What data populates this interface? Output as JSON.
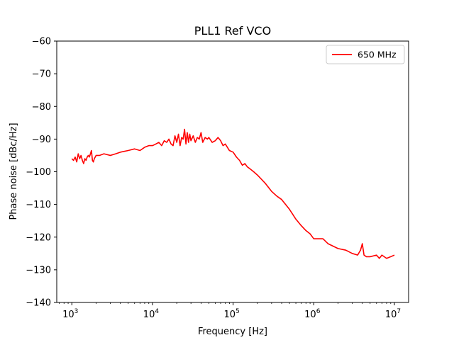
{
  "chart_data": {
    "type": "line",
    "title": "PLL1 Ref VCO",
    "xlabel": "Frequency [Hz]",
    "ylabel": "Phase noise [dBc/Hz]",
    "xscale": "log",
    "xlim": [
      650,
      15000000
    ],
    "ylim": [
      -140,
      -60
    ],
    "grid": false,
    "legend_position": "top-right",
    "x_ticks": [
      {
        "value": 1000,
        "base": "10",
        "exp": "3"
      },
      {
        "value": 10000,
        "base": "10",
        "exp": "4"
      },
      {
        "value": 100000,
        "base": "10",
        "exp": "5"
      },
      {
        "value": 1000000,
        "base": "10",
        "exp": "6"
      },
      {
        "value": 10000000,
        "base": "10",
        "exp": "7"
      }
    ],
    "y_ticks": [
      {
        "value": -60,
        "label": "−60"
      },
      {
        "value": -70,
        "label": "−70"
      },
      {
        "value": -80,
        "label": "−80"
      },
      {
        "value": -90,
        "label": "−90"
      },
      {
        "value": -100,
        "label": "−100"
      },
      {
        "value": -110,
        "label": "−110"
      },
      {
        "value": -120,
        "label": "−120"
      },
      {
        "value": -130,
        "label": "−130"
      },
      {
        "value": -140,
        "label": "−140"
      }
    ],
    "series": [
      {
        "name": "650 MHz",
        "color": "#ff0000",
        "x": [
          1000,
          1050,
          1100,
          1150,
          1200,
          1250,
          1300,
          1350,
          1400,
          1450,
          1500,
          1550,
          1600,
          1650,
          1700,
          1750,
          1800,
          1850,
          1900,
          2000,
          2200,
          2500,
          3000,
          3500,
          4000,
          5000,
          6000,
          7000,
          8000,
          9000,
          10000,
          11000,
          12000,
          13000,
          14000,
          15000,
          16000,
          17000,
          18000,
          19000,
          20000,
          21000,
          22000,
          23000,
          24000,
          25000,
          26000,
          27000,
          28000,
          29000,
          30000,
          32000,
          34000,
          36000,
          38000,
          40000,
          42000,
          45000,
          48000,
          50000,
          55000,
          60000,
          65000,
          70000,
          75000,
          80000,
          90000,
          100000,
          110000,
          120000,
          130000,
          140000,
          150000,
          160000,
          180000,
          200000,
          250000,
          300000,
          350000,
          400000,
          500000,
          600000,
          700000,
          800000,
          900000,
          1000000,
          1100000,
          1300000,
          1500000,
          2000000,
          2500000,
          3000000,
          3500000,
          3800000,
          4000000,
          4200000,
          4500000,
          5000000,
          6000000,
          6500000,
          7000000,
          8000000,
          9000000,
          10000000
        ],
        "values": [
          -96.0,
          -96.5,
          -95.5,
          -97.0,
          -94.5,
          -96.0,
          -95.0,
          -96.5,
          -97.5,
          -96.0,
          -96.5,
          -95.5,
          -95.0,
          -95.5,
          -94.5,
          -93.5,
          -96.5,
          -97.0,
          -96.0,
          -95.0,
          -95.0,
          -94.5,
          -95.0,
          -94.5,
          -94.0,
          -93.5,
          -93.0,
          -93.5,
          -92.5,
          -92.0,
          -92.0,
          -91.5,
          -91.0,
          -92.0,
          -90.5,
          -91.0,
          -90.0,
          -91.5,
          -92.0,
          -89.0,
          -91.0,
          -88.5,
          -92.0,
          -89.5,
          -90.0,
          -87.0,
          -91.5,
          -88.0,
          -91.0,
          -88.5,
          -90.5,
          -89.0,
          -91.0,
          -89.5,
          -90.0,
          -88.0,
          -91.0,
          -89.5,
          -90.0,
          -89.5,
          -91.0,
          -90.5,
          -89.5,
          -90.5,
          -92.0,
          -91.5,
          -93.5,
          -94.0,
          -95.5,
          -96.5,
          -98.0,
          -97.5,
          -98.5,
          -99.0,
          -100.0,
          -101.0,
          -103.5,
          -106.0,
          -107.5,
          -108.5,
          -111.5,
          -114.5,
          -116.5,
          -118.0,
          -119.0,
          -120.5,
          -120.5,
          -120.5,
          -122.0,
          -123.5,
          -124.0,
          -125.0,
          -125.5,
          -124.0,
          -122.0,
          -125.5,
          -126.0,
          -126.0,
          -125.5,
          -126.5,
          -125.5,
          -126.5,
          -126.0,
          -125.5
        ]
      }
    ]
  }
}
